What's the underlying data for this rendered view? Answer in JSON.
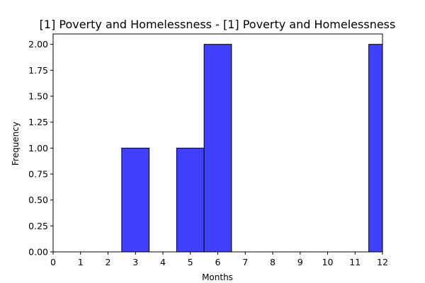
{
  "chart_data": {
    "type": "bar",
    "title": "[1] Poverty and Homelessness - [1] Poverty and Homelessness",
    "xlabel": "Months",
    "ylabel": "Frequency",
    "xlim": [
      0,
      12
    ],
    "ylim": [
      0,
      2.1
    ],
    "xticks": [
      "0",
      "1",
      "2",
      "3",
      "4",
      "5",
      "6",
      "7",
      "8",
      "9",
      "10",
      "11",
      "12"
    ],
    "yticks": [
      "0.00",
      "0.25",
      "0.50",
      "0.75",
      "1.00",
      "1.25",
      "1.50",
      "1.75",
      "2.00"
    ],
    "bins": [
      {
        "x0": 2.5,
        "x1": 3.5,
        "value": 1
      },
      {
        "x0": 4.5,
        "x1": 5.5,
        "value": 1
      },
      {
        "x0": 5.5,
        "x1": 6.5,
        "value": 2
      },
      {
        "x0": 11.5,
        "x1": 12.5,
        "value": 2
      }
    ],
    "grid": false,
    "colors": {
      "bar_fill": "#4040ff",
      "bar_edge": "#000000"
    }
  }
}
